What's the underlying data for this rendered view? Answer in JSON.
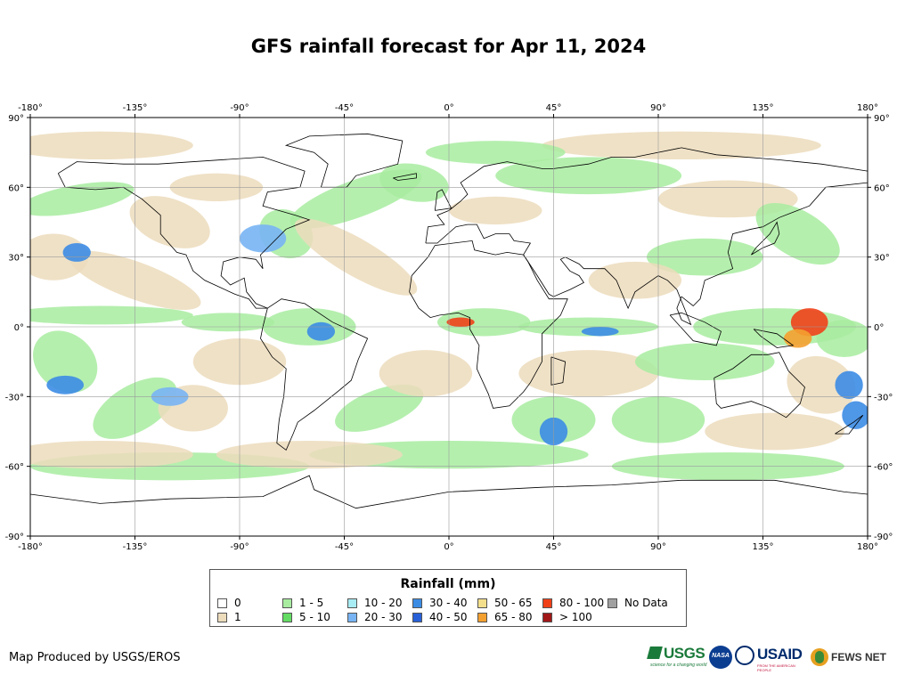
{
  "title": "GFS rainfall forecast for Apr 11, 2024",
  "axes": {
    "lon_ticks": [
      "-180°",
      "-135°",
      "-90°",
      "-45°",
      "0°",
      "45°",
      "90°",
      "135°",
      "180°"
    ],
    "lat_ticks": [
      "90°",
      "60°",
      "30°",
      "0°",
      "-30°",
      "-60°",
      "-90°"
    ],
    "lon_range": [
      -180,
      180
    ],
    "lat_range": [
      -90,
      90
    ],
    "grid": true
  },
  "legend": {
    "title": "Rainfall (mm)",
    "items": [
      {
        "label": "0",
        "color": "#ffffff"
      },
      {
        "label": "1",
        "color": "#ecdcbc"
      },
      {
        "label": "1 - 5",
        "color": "#a8eca0"
      },
      {
        "label": "5 - 10",
        "color": "#64dc64"
      },
      {
        "label": "10 - 20",
        "color": "#a8ecf4"
      },
      {
        "label": "20 - 30",
        "color": "#78b4f4"
      },
      {
        "label": "30 - 40",
        "color": "#3c8ce4"
      },
      {
        "label": "40 - 50",
        "color": "#2860d8"
      },
      {
        "label": "50 - 65",
        "color": "#f4e08c"
      },
      {
        "label": "65 - 80",
        "color": "#f4a030"
      },
      {
        "label": "80 - 100",
        "color": "#f04018"
      },
      {
        "label": "> 100",
        "color": "#a01818"
      },
      {
        "label": "No Data",
        "color": "#a0a0a0"
      }
    ]
  },
  "credit": "Map Produced by USGS/EROS",
  "logos": {
    "usgs": "USGS",
    "usgs_tagline": "science for a changing world",
    "nasa": "NASA",
    "usaid": "USAID",
    "usaid_tagline": "FROM THE AMERICAN PEOPLE",
    "fewsnet": "FEWS NET"
  },
  "colors": {
    "land_outline": "#000000",
    "grid": "#9a9a9a",
    "sand": "#ecdcbc",
    "green": "#a8eca0",
    "green2": "#64dc64"
  }
}
